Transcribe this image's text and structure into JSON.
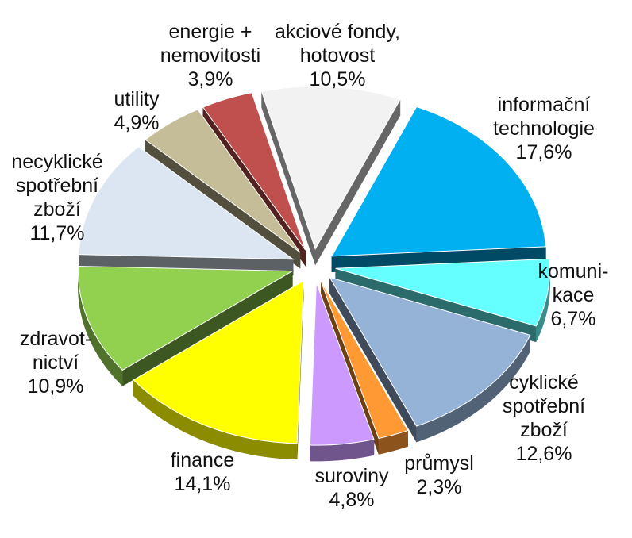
{
  "chart_data": {
    "type": "pie",
    "title": "",
    "style": "3d-exploded",
    "slices": [
      {
        "label_lines": [
          "akciové fondy,",
          "hotovost"
        ],
        "value_text": "10,5%",
        "value": 10.5,
        "color": "#f2f2f2"
      },
      {
        "label_lines": [
          "informační",
          "technologie"
        ],
        "value_text": "17,6%",
        "value": 17.6,
        "color": "#00b0f0"
      },
      {
        "label_lines": [
          "komuni-",
          "kace"
        ],
        "value_text": "6,7%",
        "value": 6.7,
        "color": "#66ffff"
      },
      {
        "label_lines": [
          "cyklické",
          "spotřební",
          "zboží"
        ],
        "value_text": "12,6%",
        "value": 12.6,
        "color": "#95b3d7"
      },
      {
        "label_lines": [
          "průmysl"
        ],
        "value_text": "2,3%",
        "value": 2.3,
        "color": "#ff9933"
      },
      {
        "label_lines": [
          "suroviny"
        ],
        "value_text": "4,8%",
        "value": 4.8,
        "color": "#cc99ff"
      },
      {
        "label_lines": [
          "finance"
        ],
        "value_text": "14,1%",
        "value": 14.1,
        "color": "#ffff00"
      },
      {
        "label_lines": [
          "zdravot-",
          "nictví"
        ],
        "value_text": "10,9%",
        "value": 10.9,
        "color": "#92d050"
      },
      {
        "label_lines": [
          "necyklické",
          "spotřební",
          "zboží"
        ],
        "value_text": "11,7%",
        "value": 11.7,
        "color": "#dce6f2"
      },
      {
        "label_lines": [
          "utility"
        ],
        "value_text": "4,9%",
        "value": 4.9,
        "color": "#c4bd97"
      },
      {
        "label_lines": [
          "energie +",
          "nemovitosti"
        ],
        "value_text": "3,9%",
        "value": 3.9,
        "color": "#c0504d"
      }
    ]
  }
}
